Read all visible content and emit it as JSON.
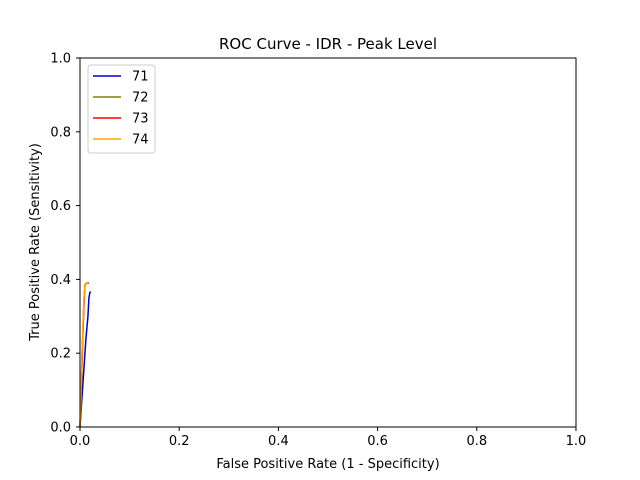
{
  "chart_data": {
    "type": "line",
    "title": "ROC Curve - IDR - Peak Level",
    "xlabel": "False Positive Rate (1 - Specificity)",
    "ylabel": "True Positive Rate (Sensitivity)",
    "xlim": [
      0.0,
      1.0
    ],
    "ylim": [
      0.0,
      1.0
    ],
    "xticks": [
      "0.0",
      "0.2",
      "0.4",
      "0.6",
      "0.8",
      "1.0"
    ],
    "yticks": [
      "0.0",
      "0.2",
      "0.4",
      "0.6",
      "0.8",
      "1.0"
    ],
    "grid": false,
    "legend_position": "top-left",
    "series": [
      {
        "name": "71",
        "color": "#0000cc",
        "points": [
          [
            0.0,
            0.0
          ],
          [
            0.004,
            0.08
          ],
          [
            0.008,
            0.16
          ],
          [
            0.012,
            0.24
          ],
          [
            0.016,
            0.3
          ],
          [
            0.018,
            0.35
          ],
          [
            0.02,
            0.365
          ],
          [
            0.022,
            0.365
          ]
        ]
      },
      {
        "name": "72",
        "color": "#808000",
        "points": [
          [
            0.0,
            0.0
          ],
          [
            0.002,
            0.08
          ],
          [
            0.004,
            0.17
          ],
          [
            0.006,
            0.26
          ],
          [
            0.008,
            0.33
          ],
          [
            0.01,
            0.385
          ],
          [
            0.014,
            0.39
          ],
          [
            0.018,
            0.39
          ]
        ]
      },
      {
        "name": "73",
        "color": "#ff0000",
        "points": [
          [
            0.0,
            0.0
          ],
          [
            0.002,
            0.09
          ],
          [
            0.004,
            0.18
          ],
          [
            0.006,
            0.27
          ],
          [
            0.008,
            0.34
          ],
          [
            0.01,
            0.385
          ],
          [
            0.013,
            0.39
          ],
          [
            0.017,
            0.39
          ]
        ]
      },
      {
        "name": "74",
        "color": "#ffa500",
        "points": [
          [
            0.0,
            0.0
          ],
          [
            0.002,
            0.1
          ],
          [
            0.004,
            0.2
          ],
          [
            0.006,
            0.28
          ],
          [
            0.008,
            0.35
          ],
          [
            0.01,
            0.385
          ],
          [
            0.012,
            0.39
          ],
          [
            0.016,
            0.39
          ]
        ]
      }
    ]
  }
}
